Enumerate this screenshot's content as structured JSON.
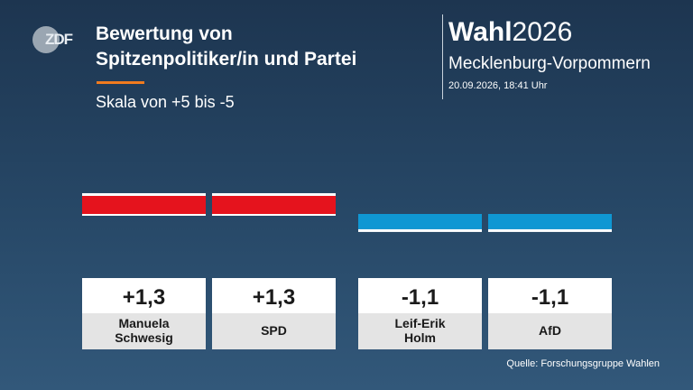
{
  "header": {
    "logo_text": "ZDF",
    "title_line1": "Bewertung von",
    "title_line2": "Spitzenpolitiker/in und Partei",
    "subtitle": "Skala von +5 bis -5",
    "wahl_bold": "Wahl",
    "wahl_year": "2026",
    "region": "Mecklenburg-Vorpommern",
    "datetime": "20.09.2026, 18:41 Uhr"
  },
  "colors": {
    "positive": "#e5131d",
    "negative": "#0f97d3",
    "accent": "#f07b1f"
  },
  "chart_data": {
    "type": "bar",
    "title": "Bewertung von Spitzenpolitiker/in und Partei",
    "subtitle": "Skala von +5 bis -5",
    "scale": [
      -5,
      5
    ],
    "categories": [
      "Manuela Schwesig",
      "SPD",
      "Leif-Erik Holm",
      "AfD"
    ],
    "category_lines": [
      [
        "Manuela",
        "Schwesig"
      ],
      [
        "SPD"
      ],
      [
        "Leif-Erik",
        "Holm"
      ],
      [
        "AfD"
      ]
    ],
    "values": [
      1.3,
      1.3,
      -1.1,
      -1.1
    ],
    "value_labels": [
      "+1,3",
      "+1,3",
      "-1,1",
      "-1,1"
    ],
    "bar_colors": [
      "#e5131d",
      "#e5131d",
      "#0f97d3",
      "#0f97d3"
    ]
  },
  "footer": {
    "source": "Quelle: Forschungsgruppe Wahlen"
  }
}
